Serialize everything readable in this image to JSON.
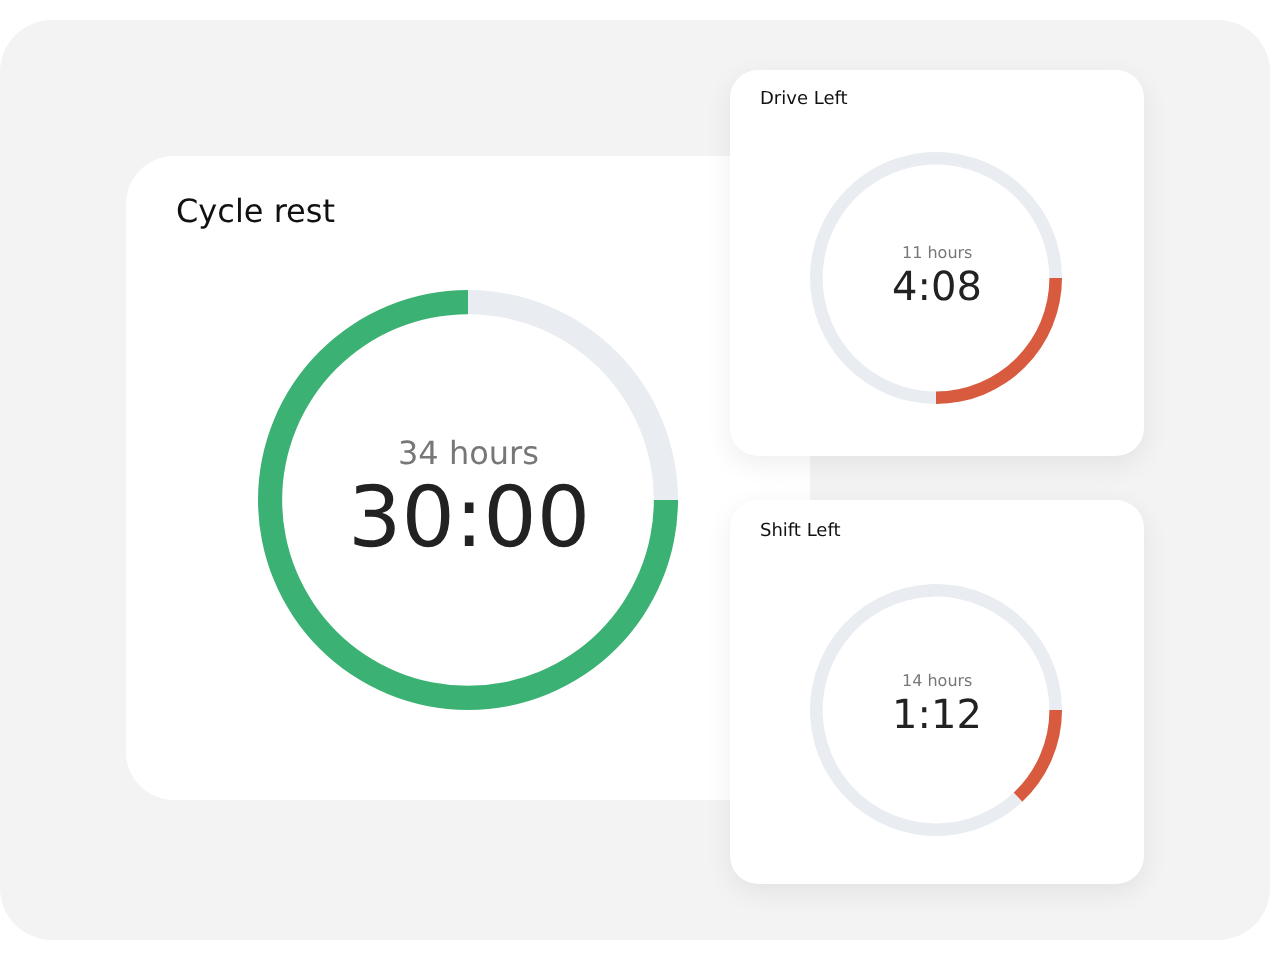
{
  "chart_data": [
    {
      "type": "donut",
      "title": "Cycle rest",
      "categories": [
        null,
        null
      ],
      "values": [
        75,
        25
      ],
      "colors": [
        "#3bb273",
        "#e9ecf1"
      ],
      "annotations": [
        "34 hours",
        "30:00"
      ]
    },
    {
      "type": "donut",
      "title": "Drive Left",
      "categories": [
        null,
        null
      ],
      "values": [
        25,
        75
      ],
      "colors": [
        "#d95b3f",
        "#e9ecf1"
      ],
      "annotations": [
        "11 hours",
        "4:08"
      ]
    },
    {
      "type": "donut",
      "title": "Shift Left",
      "categories": [
        null,
        null
      ],
      "values": [
        13,
        87
      ],
      "colors": [
        "#d95b3f",
        "#e9ecf1"
      ],
      "annotations": [
        "14 hours",
        "1:12"
      ]
    }
  ]
}
